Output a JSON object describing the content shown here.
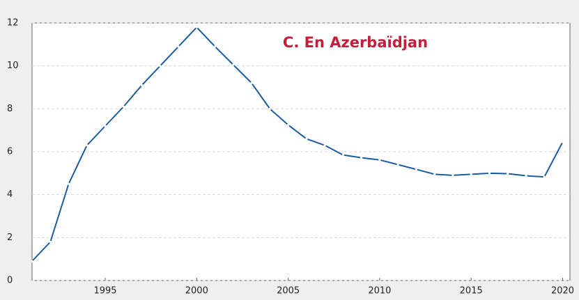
{
  "chart_data": {
    "type": "line",
    "title": "C. En Azerbaïdjan",
    "x": [
      1991,
      1992,
      1993,
      1994,
      1995,
      1996,
      1997,
      1998,
      1999,
      2000,
      2001,
      2002,
      2003,
      2004,
      2005,
      2006,
      2007,
      2008,
      2009,
      2010,
      2011,
      2012,
      2013,
      2014,
      2015,
      2016,
      2017,
      2018,
      2019,
      2020
    ],
    "series": [
      {
        "name": "Azerbaïdjan",
        "color": "#1a5c9e",
        "values": [
          0.9,
          1.8,
          4.5,
          6.3,
          7.2,
          8.1,
          9.1,
          10.0,
          10.9,
          11.8,
          10.9,
          10.05,
          9.2,
          8.0,
          7.25,
          6.6,
          6.3,
          5.85,
          5.72,
          5.62,
          5.4,
          5.18,
          4.95,
          4.9,
          4.95,
          5.0,
          4.98,
          4.88,
          4.83,
          6.45
        ]
      }
    ],
    "xlim": [
      1991,
      2020.4
    ],
    "xticks": [
      1995,
      2000,
      2005,
      2010,
      2015,
      2020
    ],
    "ylim": [
      0,
      12
    ],
    "yticks": [
      0,
      2,
      4,
      6,
      8,
      10,
      12
    ],
    "grid": true,
    "title_color": "#c41e3a"
  }
}
